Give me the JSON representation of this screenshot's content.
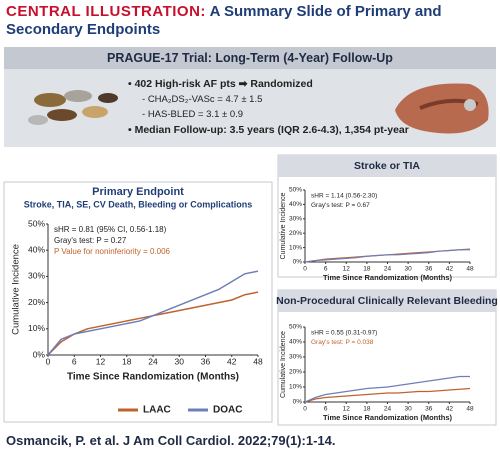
{
  "header": {
    "label": "CENTRAL ILLUSTRATION:",
    "title": "A Summary Slide of Primary and Secondary Endpoints"
  },
  "trial": {
    "title": "PRAGUE-17 Trial: Long-Term (4-Year) Follow-Up",
    "points": [
      "402 High-risk AF pts ➡ Randomized",
      "CHA₂DS₂-VASc = 4.7 ± 1.5",
      "HAS-BLED = 3.1 ± 0.9",
      "Median Follow-up: 3.5 years (IQR 2.6-4.3), 1,354 pt-year"
    ]
  },
  "chart_data": [
    {
      "type": "line",
      "title": "Primary Endpoint",
      "subtitle": "Stroke, TIA, SE, CV Death, Bleeding or Complications",
      "xlabel": "Time Since Randomization (Months)",
      "ylabel": "Cumulative Incidence",
      "x": [
        0,
        3,
        6,
        9,
        12,
        15,
        18,
        21,
        24,
        27,
        30,
        33,
        36,
        39,
        42,
        45,
        48
      ],
      "xlim": [
        0,
        48
      ],
      "xticks": [
        0,
        6,
        12,
        18,
        24,
        30,
        36,
        42,
        48
      ],
      "ylim": [
        0,
        50
      ],
      "yticks": [
        {
          "value": 0,
          "label": "0%"
        },
        {
          "value": 10,
          "label": "10%"
        },
        {
          "value": 20,
          "label": "20%"
        },
        {
          "value": 30,
          "label": "30%"
        },
        {
          "value": 40,
          "label": "40%"
        },
        {
          "value": 50,
          "label": "50%"
        }
      ],
      "annotations": [
        {
          "text": "sHR = 0.81 (95% CI, 0.56-1.18)",
          "color": "#222222"
        },
        {
          "text": "Gray's test: P = 0.27",
          "color": "#222222"
        },
        {
          "text": "P Value for noninferiority = 0.006",
          "color": "#c0622d"
        }
      ],
      "legend": "bottom",
      "series": [
        {
          "name": "LAAC",
          "color": "#c0622d",
          "values": [
            0,
            5,
            8,
            10,
            11,
            12,
            13,
            14,
            15,
            16,
            17,
            18,
            19,
            20,
            21,
            23,
            24
          ]
        },
        {
          "name": "DOAC",
          "color": "#6e7fb8",
          "values": [
            0,
            6,
            8,
            9,
            10,
            11,
            12,
            13,
            15,
            17,
            19,
            21,
            23,
            25,
            28,
            31,
            32
          ]
        }
      ]
    },
    {
      "type": "line",
      "title": "Stroke or TIA",
      "xlabel": "Time Since Randomization (Months)",
      "ylabel": "Cumulative Incidence",
      "x": [
        0,
        3,
        6,
        9,
        12,
        15,
        18,
        21,
        24,
        27,
        30,
        33,
        36,
        39,
        42,
        45,
        48
      ],
      "xlim": [
        0,
        48
      ],
      "xticks": [
        0,
        6,
        12,
        18,
        24,
        30,
        36,
        42,
        48
      ],
      "ylim": [
        0,
        50
      ],
      "yticks": [
        {
          "value": 0,
          "label": "0%"
        },
        {
          "value": 10,
          "label": "10%"
        },
        {
          "value": 20,
          "label": "20%"
        },
        {
          "value": 30,
          "label": "30%"
        },
        {
          "value": 40,
          "label": "40%"
        },
        {
          "value": 50,
          "label": "50%"
        }
      ],
      "annotations": [
        {
          "text": "sHR = 1.14 (0.56-2.30)",
          "color": "#222222"
        },
        {
          "text": "Gray's test: P = 0.67",
          "color": "#222222"
        }
      ],
      "series": [
        {
          "color": "#c0622d",
          "values": [
            0,
            1,
            2,
            2.5,
            3,
            3.5,
            4,
            4.5,
            5,
            5.5,
            6,
            6.5,
            7,
            7.5,
            8,
            8.5,
            9
          ]
        },
        {
          "color": "#6e7fb8",
          "values": [
            0,
            1,
            1.5,
            2,
            2.5,
            3,
            4,
            4.5,
            5,
            5,
            5.5,
            6,
            6.5,
            7.5,
            8,
            8.5,
            8.5
          ]
        }
      ]
    },
    {
      "type": "line",
      "title": "Non-Procedural Clinically Relevant Bleeding",
      "xlabel": "Time Since Randomization (Months)",
      "ylabel": "Cumulative Incidence",
      "x": [
        0,
        3,
        6,
        9,
        12,
        15,
        18,
        21,
        24,
        27,
        30,
        33,
        36,
        39,
        42,
        45,
        48
      ],
      "xlim": [
        0,
        48
      ],
      "xticks": [
        0,
        6,
        12,
        18,
        24,
        30,
        36,
        42,
        48
      ],
      "ylim": [
        0,
        50
      ],
      "yticks": [
        {
          "value": 0,
          "label": "0%"
        },
        {
          "value": 10,
          "label": "10%"
        },
        {
          "value": 20,
          "label": "20%"
        },
        {
          "value": 30,
          "label": "30%"
        },
        {
          "value": 40,
          "label": "40%"
        },
        {
          "value": 50,
          "label": "50%"
        }
      ],
      "annotations": [
        {
          "text": "sHR = 0.55 (0.31-0.97)",
          "color": "#222222"
        },
        {
          "text": "Gray's test: P = 0.038",
          "color": "#c0622d"
        }
      ],
      "series": [
        {
          "color": "#c0622d",
          "values": [
            0,
            2,
            3,
            3.5,
            4,
            4.5,
            5,
            5.5,
            6,
            6,
            6.5,
            7,
            7,
            7.5,
            8,
            8.5,
            9
          ]
        },
        {
          "color": "#6e7fb8",
          "values": [
            0,
            3,
            5,
            6,
            7,
            8,
            9,
            9.5,
            10,
            11,
            12,
            13,
            14,
            15,
            16,
            17,
            17
          ]
        }
      ]
    }
  ]
}
